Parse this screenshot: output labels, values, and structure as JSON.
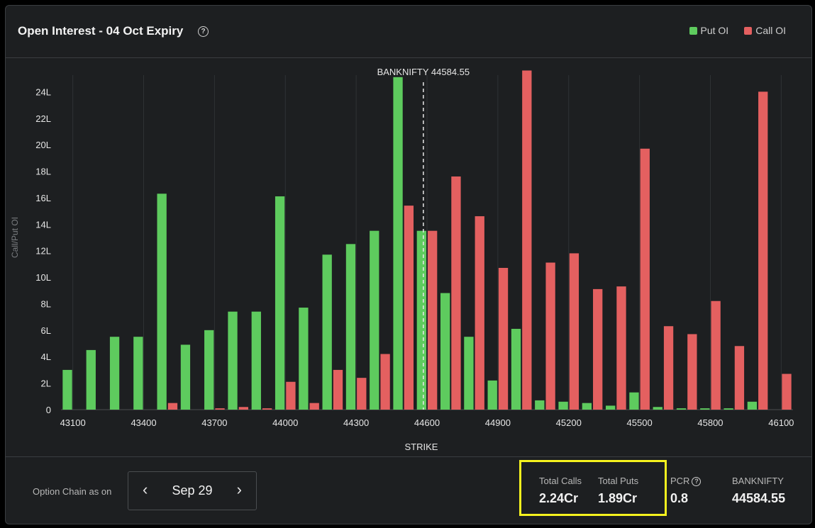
{
  "header": {
    "title": "Open Interest - 04 Oct Expiry",
    "help_icon": "?"
  },
  "legend": [
    {
      "label": "Put OI",
      "color": "#5ecb5e"
    },
    {
      "label": "Call OI",
      "color": "#e46060"
    }
  ],
  "chart_data": {
    "type": "bar",
    "ylabel": "Call/Put OI",
    "xlabel": "STRIKE",
    "spot_label": "BANKNIFTY 44584.55",
    "spot_value": 44584.55,
    "ylim": [
      0,
      26
    ],
    "yticks": [
      0,
      2,
      4,
      6,
      8,
      10,
      12,
      14,
      16,
      18,
      20,
      22,
      24
    ],
    "ytick_labels": [
      "0",
      "2L",
      "4L",
      "6L",
      "8L",
      "10L",
      "12L",
      "14L",
      "16L",
      "18L",
      "20L",
      "22L",
      "24L"
    ],
    "xtick_labels": [
      "43100",
      "43400",
      "43700",
      "44000",
      "44300",
      "44600",
      "44900",
      "45200",
      "45500",
      "45800",
      "46100"
    ],
    "categories": [
      43100,
      43200,
      43300,
      43400,
      43500,
      43600,
      43700,
      43800,
      43900,
      44000,
      44100,
      44200,
      44300,
      44400,
      44500,
      44600,
      44700,
      44800,
      44900,
      45000,
      45100,
      45200,
      45300,
      45400,
      45500,
      45600,
      45700,
      45800,
      45900,
      46000,
      46100
    ],
    "series": [
      {
        "name": "Put OI",
        "color": "#5ecb5e",
        "values": [
          3.0,
          4.5,
          5.5,
          5.5,
          16.3,
          4.9,
          6.0,
          7.4,
          7.4,
          16.1,
          7.7,
          11.7,
          12.5,
          13.5,
          25.1,
          13.5,
          8.8,
          5.5,
          2.2,
          6.1,
          0.7,
          0.6,
          0.5,
          0.3,
          1.3,
          0.2,
          0.1,
          0.1,
          0.1,
          0.6,
          0.0
        ]
      },
      {
        "name": "Call OI",
        "color": "#e46060",
        "values": [
          0.0,
          0.0,
          0.0,
          0.0,
          0.5,
          0.0,
          0.1,
          0.2,
          0.1,
          2.1,
          0.5,
          3.0,
          2.4,
          4.2,
          15.4,
          13.5,
          17.6,
          14.6,
          10.7,
          25.6,
          11.1,
          11.8,
          9.1,
          9.3,
          19.7,
          6.3,
          5.7,
          8.2,
          4.8,
          24.0,
          2.7
        ]
      }
    ]
  },
  "footer": {
    "option_chain_label": "Option Chain as on",
    "date": "Sep 29",
    "prev_icon": "‹",
    "next_icon": "›",
    "total_calls_label": "Total Calls",
    "total_calls_value": "2.24Cr",
    "total_puts_label": "Total Puts",
    "total_puts_value": "1.89Cr",
    "pcr_label": "PCR",
    "pcr_value": "0.8",
    "pcr_help_icon": "?",
    "banknifty_label": "BANKNIFTY",
    "banknifty_value": "44584.55"
  }
}
